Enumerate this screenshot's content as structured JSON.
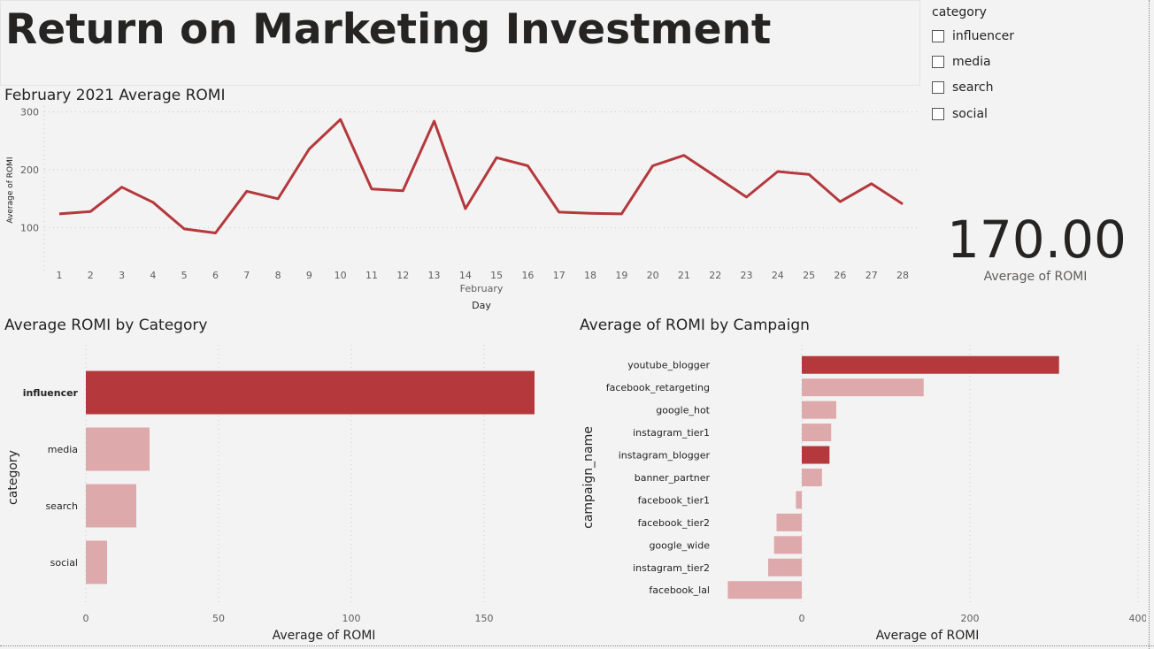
{
  "page": {
    "title": "Return on Marketing Investment"
  },
  "slicer": {
    "title": "category",
    "items": [
      {
        "label": "influencer",
        "checked": false
      },
      {
        "label": "media",
        "checked": false
      },
      {
        "label": "search",
        "checked": false
      },
      {
        "label": "social",
        "checked": false
      }
    ]
  },
  "kpi": {
    "value": "170.00",
    "label": "Average of ROMI"
  },
  "colors": {
    "accent": "#b5383c",
    "accent_light": "#dea9ab",
    "grid": "#c8c8c8",
    "axis_text": "#605e5c"
  },
  "line_visual": {
    "title": "February 2021 Average ROMI",
    "ylabel": "Average of ROMI",
    "xlabel_month": "February",
    "xlabel": "Day"
  },
  "category_visual": {
    "title": "Average ROMI by Category",
    "ylabel": "category",
    "xlabel": "Average of ROMI"
  },
  "campaign_visual": {
    "title": "Average of ROMI by Campaign",
    "ylabel": "campaign_name",
    "xlabel": "Average of ROMI"
  },
  "chart_data": [
    {
      "type": "line",
      "title": "February 2021 Average ROMI",
      "xlabel": "Day",
      "ylabel": "Average of ROMI",
      "x": [
        1,
        2,
        3,
        4,
        5,
        6,
        7,
        8,
        9,
        10,
        11,
        12,
        13,
        14,
        15,
        16,
        17,
        18,
        19,
        20,
        21,
        22,
        23,
        24,
        25,
        26,
        27,
        28
      ],
      "x_tick_labels": [
        "1",
        "2",
        "3",
        "4",
        "5",
        "6",
        "7",
        "8",
        "9",
        "10",
        "11",
        "12",
        "13",
        "14",
        "15",
        "16",
        "17",
        "18",
        "19",
        "20",
        "21",
        "22",
        "23",
        "24",
        "25",
        "26",
        "27",
        "28"
      ],
      "series": [
        {
          "values": [
            124,
            128,
            170,
            144,
            98,
            91,
            163,
            150,
            236,
            287,
            167,
            164,
            284,
            133,
            221,
            207,
            127,
            125,
            124,
            207,
            225,
            189,
            153,
            197,
            192,
            145,
            176,
            141
          ]
        }
      ],
      "yticks": [
        100,
        200,
        300
      ],
      "ylim": [
        20,
        310
      ],
      "grid": true
    },
    {
      "type": "bar",
      "orientation": "horizontal",
      "title": "Average ROMI by Category",
      "xlabel": "Average of ROMI",
      "ylabel": "category",
      "categories": [
        "influencer",
        "media",
        "search",
        "social"
      ],
      "values": [
        169,
        24,
        19,
        8
      ],
      "highlighted": [
        "influencer"
      ],
      "xticks": [
        0,
        50,
        100,
        150
      ],
      "xlim": [
        0,
        169
      ],
      "grid": true
    },
    {
      "type": "bar",
      "orientation": "horizontal",
      "title": "Average of ROMI by Campaign",
      "xlabel": "Average of ROMI",
      "ylabel": "campaign_name",
      "categories": [
        "youtube_blogger",
        "facebook_retargeting",
        "google_hot",
        "instagram_tier1",
        "instagram_blogger",
        "banner_partner",
        "facebook_tier1",
        "facebook_tier2",
        "google_wide",
        "instagram_tier2",
        "facebook_lal"
      ],
      "values": [
        306,
        145,
        41,
        35,
        33,
        24,
        -7,
        -30,
        -33,
        -40,
        -88
      ],
      "highlighted": [
        "youtube_blogger",
        "instagram_blogger"
      ],
      "xticks": [
        0,
        200,
        400
      ],
      "xlim": [
        -100,
        400
      ],
      "grid": true
    }
  ]
}
